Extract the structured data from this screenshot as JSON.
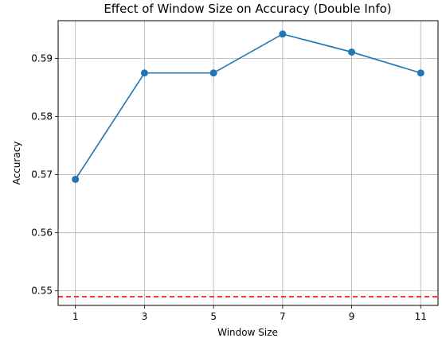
{
  "chart_data": {
    "type": "line",
    "title": "Effect of Window Size on Accuracy (Double Info)",
    "xlabel": "Window Size",
    "ylabel": "Accuracy",
    "x": [
      1,
      3,
      5,
      7,
      9,
      11
    ],
    "series": [
      {
        "values": [
          0.5692,
          0.5875,
          0.5875,
          0.5942,
          0.5911,
          0.5875
        ],
        "color": "#1f77b4",
        "marker": "circle"
      }
    ],
    "reference_line": {
      "y": 0.549,
      "color": "#ff0000",
      "style": "dashed"
    },
    "xticks": [
      "1",
      "3",
      "5",
      "7",
      "9",
      "11"
    ],
    "yticks": [
      "0.55",
      "0.56",
      "0.57",
      "0.58",
      "0.59"
    ],
    "xlim": [
      0.5,
      11.5
    ],
    "ylim": [
      0.5475,
      0.5965
    ],
    "grid": true
  }
}
